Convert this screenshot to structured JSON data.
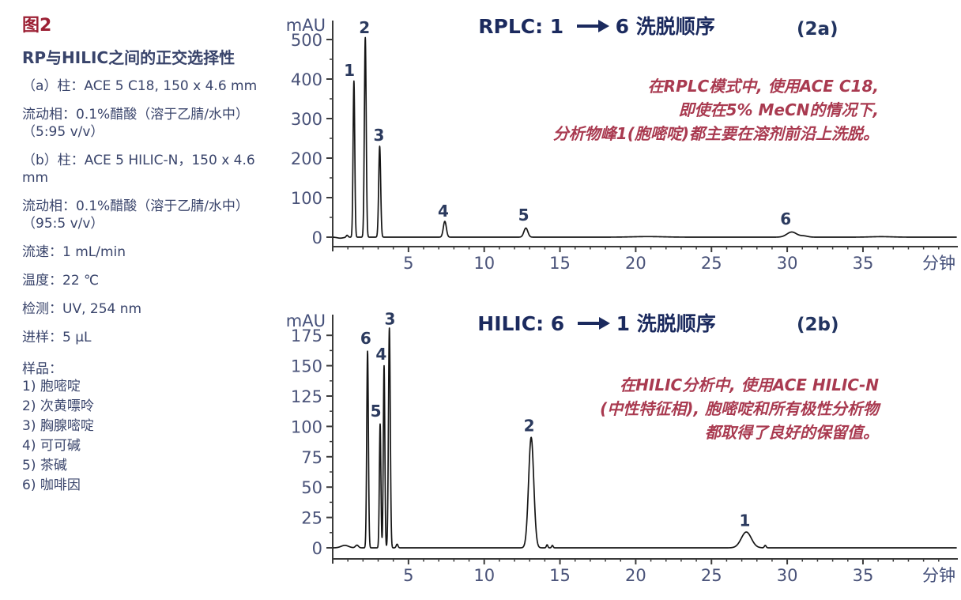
{
  "caption": {
    "tag": "图2",
    "heading": "RP与HILIC之间的正交选择性",
    "conditions": [
      "（a）柱：ACE 5 C18, 150 x 4.6 mm",
      "流动相：0.1%醋酸（溶于乙腈/水中）（5:95 v/v）",
      "（b）柱：ACE 5 HILIC-N，150 x 4.6 mm",
      "流动相：0.1%醋酸（溶于乙腈/水中）（95:5 v/v）",
      "流速：1 mL/min",
      "温度：22 ℃",
      "检测：UV, 254 nm",
      "进样：5 μL"
    ],
    "sample_label": "样品：",
    "samples": [
      "1) 胞嘧啶",
      "2) 次黄嘌呤",
      "3) 胸腺嘧啶",
      "4) 可可碱",
      "5) 茶碱",
      "6) 咖啡因"
    ]
  },
  "colors": {
    "figure_tag_red": "#9c2034",
    "annotation_red": "#a93a50",
    "title_navy": "#1b2a5e",
    "body_navy": "#39446b",
    "trace_black": "#151515"
  },
  "chart_data": [
    {
      "type": "line",
      "panel": "2a",
      "panel_label": "(2a)",
      "title": "RPLC: 1 → 6 洗脱顺序",
      "title_left": "RPLC: 1",
      "title_right": "6 洗脱顺序",
      "xlabel": "分钟",
      "ylabel": "mAU",
      "xlim": [
        0,
        41
      ],
      "ylim": [
        0,
        545
      ],
      "xticks": [
        5,
        10,
        15,
        20,
        25,
        30,
        35
      ],
      "yticks": [
        0,
        100,
        200,
        300,
        400,
        500
      ],
      "annotation": {
        "lines": [
          "在RPLC模式中, 使用ACE C18,",
          "即使在5% MeCN的情况下,",
          "分析物峰1(胞嘧啶)都主要在溶剂前沿上洗脱。"
        ]
      },
      "peaks": [
        {
          "label": "1",
          "rt_min": 1.4,
          "height_mAU": 395,
          "sigma_min": 0.055,
          "label_t": 1.1,
          "label_y": 408
        },
        {
          "label": "2",
          "rt_min": 2.15,
          "height_mAU": 505,
          "sigma_min": 0.06,
          "label_t": 2.1,
          "label_y": 516
        },
        {
          "label": "3",
          "rt_min": 3.1,
          "height_mAU": 230,
          "sigma_min": 0.065,
          "label_t": 3.05,
          "label_y": 244
        },
        {
          "label": "4",
          "rt_min": 7.4,
          "height_mAU": 40,
          "sigma_min": 0.1,
          "label_t": 7.3,
          "label_y": 52
        },
        {
          "label": "5",
          "rt_min": 12.75,
          "height_mAU": 23,
          "sigma_min": 0.13,
          "label_t": 12.6,
          "label_y": 42
        },
        {
          "label": "6",
          "rt_min": 30.3,
          "height_mAU": 13,
          "sigma_min": 0.32,
          "label_t": 29.9,
          "label_y": 32
        }
      ],
      "baseline_features": [
        {
          "t": 0.5,
          "h": -2.5,
          "sigma": 0.2
        },
        {
          "t": 0.95,
          "h": 5,
          "sigma": 0.06
        },
        {
          "t": 20.8,
          "h": 1.4,
          "sigma": 1.0
        },
        {
          "t": 31.1,
          "h": 3,
          "sigma": 0.25
        },
        {
          "t": 36.2,
          "h": 1.2,
          "sigma": 0.7
        }
      ]
    },
    {
      "type": "line",
      "panel": "2b",
      "panel_label": "(2b)",
      "title": "HILIC: 6 → 1 洗脱顺序",
      "title_left": "HILIC: 6",
      "title_right": "1 洗脱顺序",
      "xlabel": "分钟",
      "ylabel": "mAU",
      "xlim": [
        0,
        41
      ],
      "ylim": [
        0,
        192
      ],
      "xticks": [
        5,
        10,
        15,
        20,
        25,
        30,
        35
      ],
      "yticks": [
        0,
        25,
        50,
        75,
        100,
        125,
        150,
        175
      ],
      "annotation": {
        "lines": [
          "在HILIC分析中, 使用ACE HILIC-N",
          "(中性特征相), 胞嘧啶和所有极性分析物",
          "都取得了良好的保留值。"
        ]
      },
      "peaks": [
        {
          "label": "6",
          "rt_min": 2.3,
          "height_mAU": 162,
          "sigma_min": 0.055,
          "label_t": 2.18,
          "label_y": 168
        },
        {
          "label": "5",
          "rt_min": 3.13,
          "height_mAU": 102,
          "sigma_min": 0.05,
          "label_t": 2.85,
          "label_y": 108
        },
        {
          "label": "4",
          "rt_min": 3.39,
          "height_mAU": 150,
          "sigma_min": 0.05,
          "label_t": 3.2,
          "label_y": 155
        },
        {
          "label": "3",
          "rt_min": 3.74,
          "height_mAU": 181,
          "sigma_min": 0.06,
          "label_t": 3.78,
          "label_y": 184
        },
        {
          "label": "2",
          "rt_min": 13.1,
          "height_mAU": 91,
          "sigma_min": 0.17,
          "label_t": 12.97,
          "label_y": 96
        },
        {
          "label": "1",
          "rt_min": 27.3,
          "height_mAU": 13,
          "sigma_min": 0.33,
          "label_t": 27.2,
          "label_y": 18
        }
      ],
      "baseline_features": [
        {
          "t": 0.8,
          "h": 2,
          "sigma": 0.25
        },
        {
          "t": 1.6,
          "h": 2.2,
          "sigma": 0.1
        },
        {
          "t": 4.25,
          "h": 3,
          "sigma": 0.06
        },
        {
          "t": 14.15,
          "h": 2.5,
          "sigma": 0.05
        },
        {
          "t": 14.5,
          "h": 2,
          "sigma": 0.05
        },
        {
          "t": 28.55,
          "h": 2,
          "sigma": 0.06
        }
      ]
    }
  ]
}
